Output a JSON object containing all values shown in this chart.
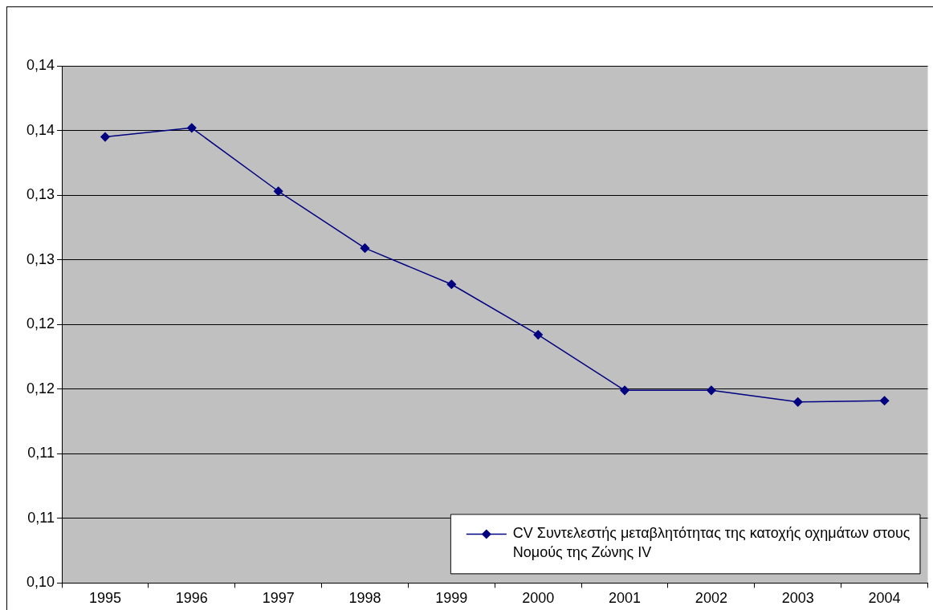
{
  "chart_data": {
    "type": "line",
    "categories": [
      "1995",
      "1996",
      "1997",
      "1998",
      "1999",
      "2000",
      "2001",
      "2002",
      "2003",
      "2004"
    ],
    "series": [
      {
        "name": "CV Συντελεστής μεταβλητότητας της κατοχής οχημάτων στους Νομούς της Ζώνης IV",
        "color": "#000080",
        "values": [
          0.1345,
          0.1352,
          0.1303,
          0.1259,
          0.1231,
          0.1192,
          0.1149,
          0.1149,
          0.114,
          0.1141
        ]
      }
    ],
    "ylim": [
      0.1,
      0.14
    ],
    "yticks": [
      {
        "value": 0.1,
        "label": "0,10"
      },
      {
        "value": 0.105,
        "label": "0,11"
      },
      {
        "value": 0.11,
        "label": "0,11"
      },
      {
        "value": 0.115,
        "label": "0,12"
      },
      {
        "value": 0.12,
        "label": "0,12"
      },
      {
        "value": 0.125,
        "label": "0,13"
      },
      {
        "value": 0.13,
        "label": "0,13"
      },
      {
        "value": 0.135,
        "label": "0,14"
      },
      {
        "value": 0.14,
        "label": "0,14"
      }
    ],
    "grid": "y",
    "legend": "bottom right",
    "marker": "diamond",
    "line_style": "solid"
  }
}
